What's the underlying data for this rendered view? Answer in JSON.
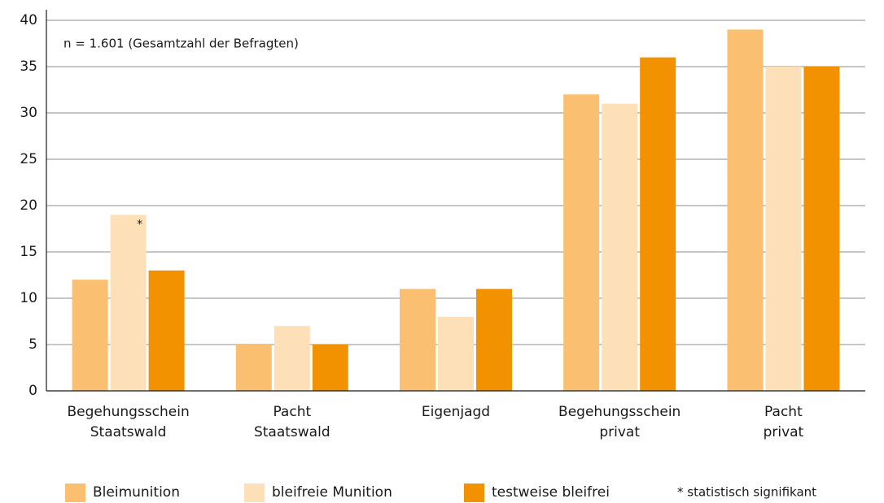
{
  "chart_data": {
    "type": "bar",
    "annotations": [
      "n = 1.601 (Gesamtzahl der Befragten)",
      "*",
      "* statistisch signifikant"
    ],
    "categories": [
      [
        "Begehungsschein",
        "Staatswald"
      ],
      [
        "Pacht",
        "Staatswald"
      ],
      [
        "Eigenjagd"
      ],
      [
        "Begehungsschein",
        "privat"
      ],
      [
        "Pacht",
        "privat"
      ]
    ],
    "series": [
      {
        "name": "Bleimunition",
        "color": "#fbbf72",
        "values": [
          12,
          5,
          11,
          32,
          39
        ]
      },
      {
        "name": "bleifreie Munition",
        "color": "#fde0b8",
        "values": [
          19,
          7,
          8,
          31,
          35
        ]
      },
      {
        "name": "testweise bleifrei",
        "color": "#f39200",
        "values": [
          13,
          5,
          11,
          36,
          35
        ]
      }
    ],
    "ylim": [
      0,
      40
    ],
    "yticks": [
      0,
      5,
      10,
      15,
      20,
      25,
      30,
      35,
      40
    ],
    "grid": true
  }
}
